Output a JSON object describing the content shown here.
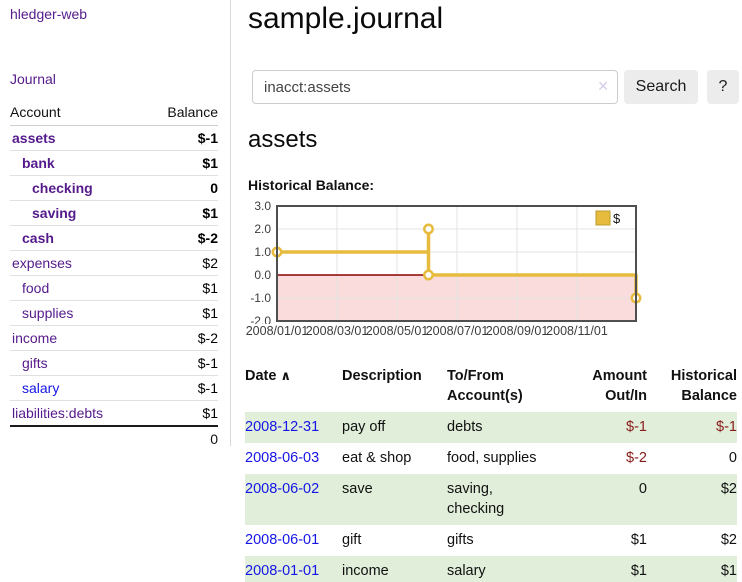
{
  "colors": {
    "link_purple": "#551a8b",
    "link_blue": "#1515e6",
    "negative_strong": "#8a1515",
    "negative_soft": "#bb6a6a",
    "row_shade_green": "#e0eeda",
    "series_yellow": "#e6bb3e",
    "negative_region_pink": "#fbdcdc",
    "zero_line_red": "#8b0000"
  },
  "sidebar": {
    "brand": "hledger-web",
    "nav_journal": "Journal",
    "header": {
      "account": "Account",
      "balance": "Balance"
    },
    "accounts": [
      {
        "name": "assets",
        "balance": "$-1",
        "depth": 0,
        "bold": true,
        "neg": "strong"
      },
      {
        "name": "bank",
        "balance": "$1",
        "depth": 1,
        "bold": true
      },
      {
        "name": "checking",
        "balance": "0",
        "depth": 2,
        "bold": true
      },
      {
        "name": "saving",
        "balance": "$1",
        "depth": 2,
        "bold": true
      },
      {
        "name": "cash",
        "balance": "$-2",
        "depth": 1,
        "bold": true,
        "neg": "strong"
      },
      {
        "name": "expenses",
        "balance": "$2",
        "depth": 0
      },
      {
        "name": "food",
        "balance": "$1",
        "depth": 1
      },
      {
        "name": "supplies",
        "balance": "$1",
        "depth": 1
      },
      {
        "name": "income",
        "balance": "$-2",
        "depth": 0,
        "neg": "soft"
      },
      {
        "name": "gifts",
        "balance": "$-1",
        "depth": 1,
        "neg": "soft"
      },
      {
        "name": "salary",
        "balance": "$-1",
        "depth": 1,
        "neg": "soft",
        "blue": true
      },
      {
        "name": "liabilities:debts",
        "balance": "$1",
        "depth": 0
      }
    ],
    "total": "0"
  },
  "header": {
    "title": "sample.journal"
  },
  "search": {
    "value": "inacct:assets",
    "clear_icon": "✕",
    "search_button": "Search",
    "help_button": "?"
  },
  "account_page": {
    "heading": "assets",
    "chart_heading": "Historical Balance:"
  },
  "chart_data": {
    "type": "line",
    "step": true,
    "title": "Historical Balance",
    "legend": "$",
    "legend_position": "top-right",
    "grid": true,
    "ylim": [
      -2.0,
      3.0
    ],
    "yticks": [
      "3.0",
      "2.0",
      "1.0",
      "0.0",
      "-1.0",
      "-2.0"
    ],
    "xticks": [
      "2008/01/01",
      "2008/03/01",
      "2008/05/01",
      "2008/07/01",
      "2008/09/01",
      "2008/11/01"
    ],
    "series": [
      {
        "name": "$",
        "balances": [
          [
            "2008-01-01",
            1
          ],
          [
            "2008-06-01",
            2
          ],
          [
            "2008-06-03",
            0
          ],
          [
            "2008-12-31",
            -1
          ]
        ]
      }
    ],
    "render_points": [
      {
        "x": 0.0,
        "y": 1,
        "marker": true
      },
      {
        "x": 0.422,
        "y": 1,
        "marker": false
      },
      {
        "x": 0.422,
        "y": 2,
        "marker": true
      },
      {
        "x": 0.422,
        "y": 0,
        "marker": true
      },
      {
        "x": 1.0,
        "y": 0,
        "marker": false
      },
      {
        "x": 1.0,
        "y": -1,
        "marker": true
      }
    ]
  },
  "table": {
    "headers": {
      "date": "Date",
      "sort_icon": "∧",
      "description": "Description",
      "accounts_l1": "To/From",
      "accounts_l2": "Account(s)",
      "amount_l1": "Amount",
      "amount_l2": "Out/In",
      "balance_l1": "Historical",
      "balance_l2": "Balance"
    },
    "rows": [
      {
        "date": "2008-12-31",
        "description": "pay off",
        "accounts": "debts",
        "amount": "$-1",
        "balance": "$-1",
        "amount_neg": true,
        "balance_neg": true,
        "shaded": true
      },
      {
        "date": "2008-06-03",
        "description": "eat & shop",
        "accounts": "food, supplies",
        "amount": "$-2",
        "balance": "0",
        "amount_neg": true,
        "balance_neg": false,
        "shaded": false
      },
      {
        "date": "2008-06-02",
        "description": "save",
        "accounts": "saving,\nchecking",
        "amount": "0",
        "balance": "$2",
        "amount_neg": false,
        "balance_neg": false,
        "shaded": true
      },
      {
        "date": "2008-06-01",
        "description": "gift",
        "accounts": "gifts",
        "amount": "$1",
        "balance": "$2",
        "amount_neg": false,
        "balance_neg": false,
        "shaded": false
      },
      {
        "date": "2008-01-01",
        "description": "income",
        "accounts": "salary",
        "amount": "$1",
        "balance": "$1",
        "amount_neg": false,
        "balance_neg": false,
        "shaded": true
      }
    ]
  }
}
